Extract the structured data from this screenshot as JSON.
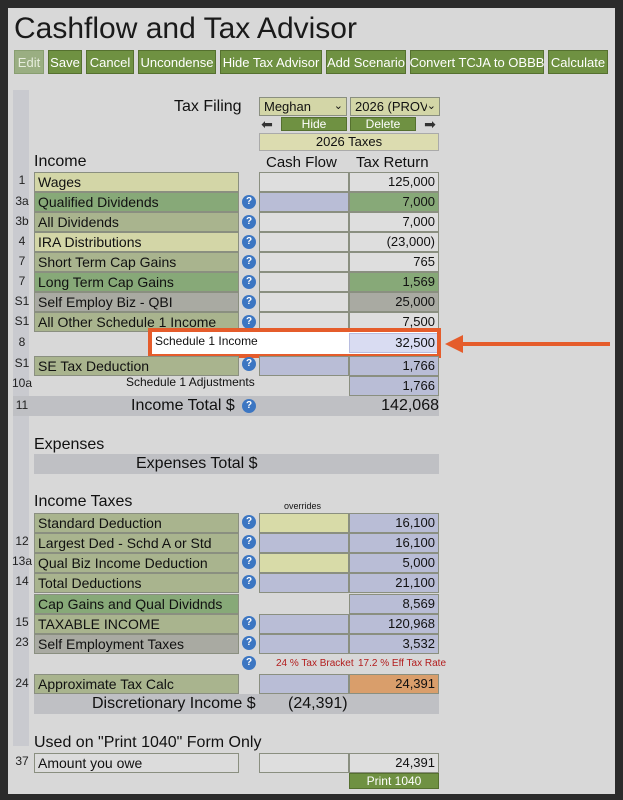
{
  "app": {
    "title": "Cashflow and Tax Advisor"
  },
  "toolbar": [
    {
      "label": "Edit",
      "disabled": true
    },
    {
      "label": "Save"
    },
    {
      "label": "Cancel"
    },
    {
      "label": "Uncondense"
    },
    {
      "label": "Hide Tax Advisor"
    },
    {
      "label": "Add Scenario"
    },
    {
      "label": "Convert TCJA to OBBB"
    },
    {
      "label": "Calculate"
    }
  ],
  "tax_filing": {
    "label": "Tax Filing",
    "person": "Meghan",
    "year": "2026 (PROV)",
    "hide_label": "Hide",
    "delete_label": "Delete",
    "taxes_label": "2026 Taxes"
  },
  "columns": {
    "income": "Income",
    "cash_flow": "Cash Flow",
    "tax_return": "Tax Return"
  },
  "income_rows": [
    {
      "line": "1",
      "label": "Wages",
      "tax_return": "125,000"
    },
    {
      "line": "3a",
      "label": "Qualified Dividends",
      "tax_return": "7,000"
    },
    {
      "line": "3b",
      "label": "All Dividends",
      "tax_return": "7,000"
    },
    {
      "line": "4",
      "label": "IRA Distributions",
      "tax_return": "(23,000)"
    },
    {
      "line": "7",
      "label": "Short Term Cap Gains",
      "tax_return": "765"
    },
    {
      "line": "7",
      "label": "Long Term Cap Gains",
      "tax_return": "1,569"
    },
    {
      "line": "S1",
      "label": "Self Employ Biz - QBI",
      "tax_return": "25,000"
    },
    {
      "line": "S1",
      "label": "All Other Schedule 1 Income",
      "tax_return": "7,500"
    },
    {
      "line": "8",
      "label": "Schedule 1 Income",
      "tax_return": "32,500"
    },
    {
      "line": "S1",
      "label": "SE Tax Deduction",
      "tax_return": "1,766"
    },
    {
      "line": "10a",
      "label": "Schedule 1 Adjustments",
      "tax_return": "1,766"
    }
  ],
  "income_total": {
    "line": "11",
    "label": "Income Total $",
    "value": "142,068"
  },
  "expenses": {
    "heading": "Expenses",
    "total_label": "Expenses Total $"
  },
  "income_taxes": {
    "heading": "Income Taxes",
    "overrides_label": "overrides",
    "rows": [
      {
        "line": "",
        "label": "Standard Deduction",
        "tax_return": "16,100"
      },
      {
        "line": "12",
        "label": "Largest Ded - Schd A or Std",
        "tax_return": "16,100"
      },
      {
        "line": "13a",
        "label": "Qual Biz Income Deduction",
        "tax_return": "5,000"
      },
      {
        "line": "14",
        "label": "Total Deductions",
        "tax_return": "21,100"
      },
      {
        "line": "",
        "label": "Cap Gains and Qual Dividnds",
        "tax_return": "8,569"
      },
      {
        "line": "15",
        "label": "TAXABLE INCOME",
        "tax_return": "120,968"
      },
      {
        "line": "23",
        "label": "Self Employment Taxes",
        "tax_return": "3,532"
      }
    ],
    "tax_bracket": "24 % Tax Bracket",
    "eff_tax_rate": "17.2 % Eff Tax Rate",
    "approx": {
      "line": "24",
      "label": "Approximate Tax Calc",
      "tax_return": "24,391"
    },
    "discretionary": {
      "label": "Discretionary Income $",
      "value": "(24,391)"
    }
  },
  "print1040": {
    "heading": "Used on \"Print 1040\" Form Only",
    "line": "37",
    "label": "Amount you owe",
    "tax_return": "24,391",
    "button": "Print 1040"
  },
  "help_glyph": "?",
  "arrow_glyphs": {
    "left": "⬅",
    "right": "➡"
  },
  "annotation": {
    "color": "#e55c2b"
  },
  "icons": [
    "help-icon",
    "left-arrow-icon",
    "right-arrow-icon",
    "dropdown-chevron-icon"
  ]
}
